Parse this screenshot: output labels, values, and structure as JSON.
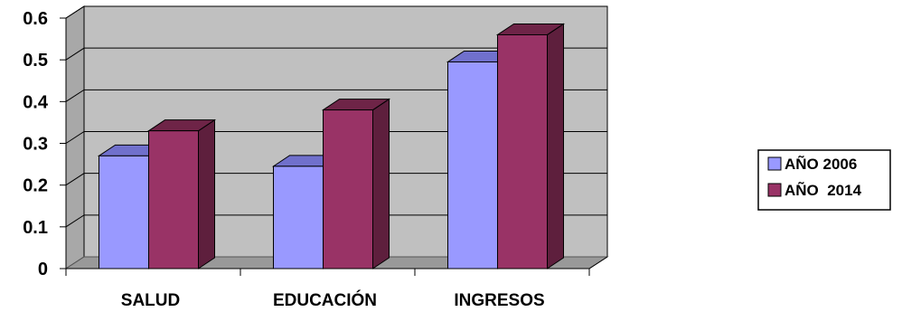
{
  "chart_data": {
    "type": "bar",
    "title": "",
    "xlabel": "",
    "ylabel": "",
    "categories": [
      "SALUD",
      "EDUCACIÓN",
      "INGRESOS"
    ],
    "series": [
      {
        "name": "AÑO 2006",
        "values": [
          0.27,
          0.245,
          0.495
        ],
        "color": "#9999ff",
        "top_color": "#7070cc",
        "side_color": "#5a5aa8"
      },
      {
        "name": "AÑO  2014",
        "values": [
          0.33,
          0.38,
          0.56
        ],
        "color": "#993366",
        "top_color": "#6e2447",
        "side_color": "#5e1f3d"
      }
    ],
    "ylim": [
      0,
      0.6
    ],
    "yticks": [
      "0",
      "0.1",
      "0.2",
      "0.3",
      "0.4",
      "0.5",
      "0.6"
    ],
    "grid": true,
    "style": "3d-column",
    "wall_color": "#c0c0c0",
    "floor_color": "#999999",
    "legend_position": "right"
  }
}
